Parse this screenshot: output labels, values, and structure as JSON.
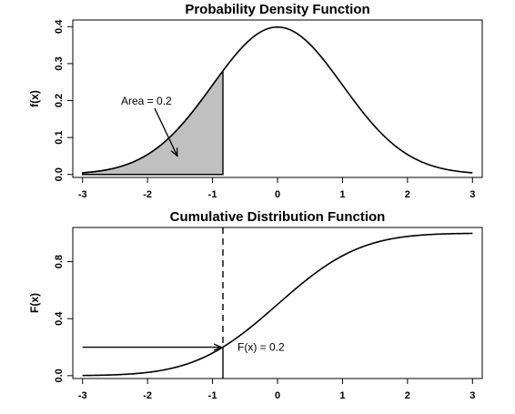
{
  "chart_data": [
    {
      "type": "line",
      "title": "Probability Density Function",
      "xlabel": "",
      "ylabel": "f(x)",
      "xlim": [
        -3,
        3
      ],
      "ylim": [
        0,
        0.4
      ],
      "xticks": [
        "-3",
        "-2",
        "-1",
        "0",
        "1",
        "2",
        "3"
      ],
      "yticks": [
        "0.0",
        "0.1",
        "0.2",
        "0.3",
        "0.4"
      ],
      "curve": "standard normal density, x from -3 to 3",
      "x": [
        -3,
        -2.5,
        -2,
        -1.5,
        -1,
        -0.84,
        -0.5,
        0,
        0.5,
        1,
        1.5,
        2,
        2.5,
        3
      ],
      "y": [
        0.0044,
        0.0175,
        0.054,
        0.1295,
        0.242,
        0.28,
        0.3521,
        0.3989,
        0.3521,
        0.242,
        0.1295,
        0.054,
        0.0175,
        0.0044
      ],
      "shaded_region": {
        "from": -3,
        "to": -0.84,
        "fill": "#c0c0c0"
      },
      "annotation": {
        "text": "Area = 0.2",
        "points_to_x": -1.5
      }
    },
    {
      "type": "line",
      "title": "Cumulative Distribution Function",
      "xlabel": "",
      "ylabel": "F(x)",
      "xlim": [
        -3,
        3
      ],
      "ylim": [
        0,
        1
      ],
      "xticks": [
        "-3",
        "-2",
        "-1",
        "0",
        "1",
        "2",
        "3"
      ],
      "yticks": [
        "0.0",
        "0.4",
        "0.8"
      ],
      "curve": "standard normal CDF, x from -3 to 3",
      "x": [
        -3,
        -2.5,
        -2,
        -1.5,
        -1,
        -0.84,
        -0.5,
        0,
        0.5,
        1,
        1.5,
        2,
        2.5,
        3
      ],
      "y": [
        0.0013,
        0.0062,
        0.0228,
        0.0668,
        0.1587,
        0.2,
        0.3085,
        0.5,
        0.6915,
        0.8413,
        0.9332,
        0.9772,
        0.9938,
        0.9987
      ],
      "quantile_x": -0.84,
      "quantile_y": 0.2,
      "annotation": {
        "text": "F(x) = 0.2"
      }
    }
  ]
}
